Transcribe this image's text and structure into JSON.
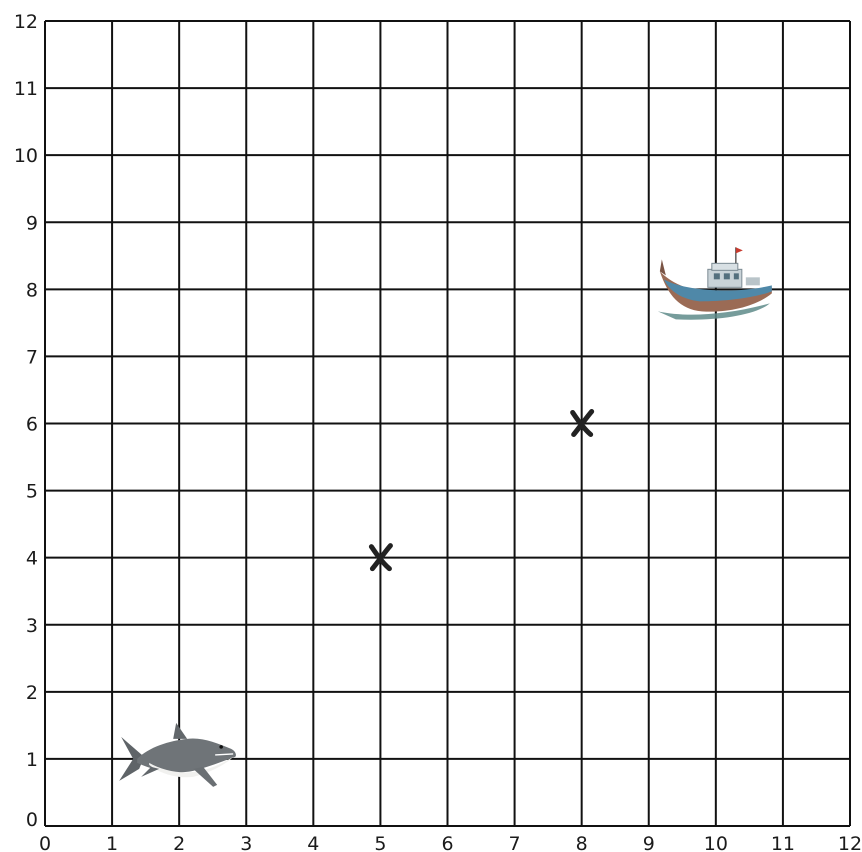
{
  "chart_data": {
    "type": "scatter",
    "title": "",
    "xlabel": "",
    "ylabel": "",
    "xlim": [
      0,
      12
    ],
    "ylim": [
      0,
      12
    ],
    "grid": true,
    "x_ticks": [
      "0",
      "1",
      "2",
      "3",
      "4",
      "5",
      "6",
      "7",
      "8",
      "9",
      "10",
      "11",
      "12"
    ],
    "y_ticks": [
      "0",
      "1",
      "2",
      "3",
      "4",
      "5",
      "6",
      "7",
      "8",
      "9",
      "10",
      "11",
      "12"
    ],
    "markers": [
      {
        "symbol": "x",
        "x": 5,
        "y": 4
      },
      {
        "symbol": "x",
        "x": 8,
        "y": 6
      }
    ],
    "pictures": [
      {
        "icon": "shark-icon",
        "x": 2,
        "y": 1
      },
      {
        "icon": "boat-icon",
        "x": 10,
        "y": 8
      }
    ]
  },
  "colors": {
    "grid": "#111111",
    "marker": "#222222",
    "shark_body": "#6f7478",
    "shark_belly": "#f1f1ef",
    "boat_hull": "#9b6b55",
    "boat_stripe": "#4f88a8",
    "boat_cabin": "#c9d3d8",
    "water": "#5e8b8a"
  }
}
